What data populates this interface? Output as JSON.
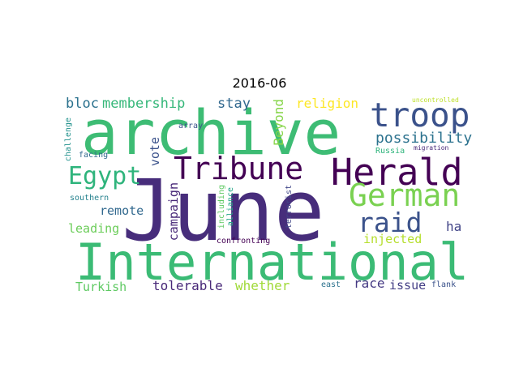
{
  "title": "2016-06",
  "cloud": {
    "june": {
      "text": "June",
      "color": "#472d7b"
    },
    "archive": {
      "text": "archive",
      "color": "#3dbc74"
    },
    "international": {
      "text": "International",
      "color": "#3bbb75"
    },
    "herald": {
      "text": "Herald",
      "color": "#440154"
    },
    "tribune": {
      "text": "Tribune",
      "color": "#440154"
    },
    "troop": {
      "text": "troop",
      "color": "#3b528b"
    },
    "german": {
      "text": "German",
      "color": "#7ad151"
    },
    "egypt": {
      "text": "Egypt",
      "color": "#2fb47c"
    },
    "raid": {
      "text": "raid",
      "color": "#3b528b"
    },
    "possibility": {
      "text": "possibility",
      "color": "#2c728e"
    },
    "membership": {
      "text": "membership",
      "color": "#35b779"
    },
    "bloc": {
      "text": "bloc",
      "color": "#2c728e"
    },
    "stay": {
      "text": "stay",
      "color": "#31688e"
    },
    "religion": {
      "text": "religion",
      "color": "#fde725"
    },
    "beyond": {
      "text": "Beyond",
      "color": "#86d549"
    },
    "vote": {
      "text": "vote",
      "color": "#3b528b"
    },
    "campaign": {
      "text": "campaign",
      "color": "#482878"
    },
    "remote": {
      "text": "remote",
      "color": "#31688e"
    },
    "leading": {
      "text": "leading",
      "color": "#6ccd5a"
    },
    "injected": {
      "text": "injected",
      "color": "#b5de2b"
    },
    "ha": {
      "text": "ha",
      "color": "#414487"
    },
    "tolerable": {
      "text": "tolerable",
      "color": "#482878"
    },
    "whether": {
      "text": "whether",
      "color": "#a0da39"
    },
    "race": {
      "text": "race",
      "color": "#443983"
    },
    "issue": {
      "text": "issue",
      "color": "#433e85"
    },
    "turkish": {
      "text": "Turkish",
      "color": "#5ec962"
    },
    "challenge": {
      "text": "challenge",
      "color": "#21918c"
    },
    "facing": {
      "text": "facing",
      "color": "#31688e"
    },
    "array": {
      "text": "array",
      "color": "#3b528b"
    },
    "southern": {
      "text": "southern",
      "color": "#26828e"
    },
    "including": {
      "text": "including",
      "color": "#5ec962"
    },
    "alliance": {
      "text": "alliance",
      "color": "#21a585"
    },
    "terrorist": {
      "text": "terrorist",
      "color": "#404688"
    },
    "confronting": {
      "text": "confronting",
      "color": "#440154"
    },
    "east": {
      "text": "east",
      "color": "#2c728e"
    },
    "flank": {
      "text": "flank",
      "color": "#3b528b"
    },
    "russia": {
      "text": "Russia",
      "color": "#2fb47c"
    },
    "migration": {
      "text": "migration",
      "color": "#482878"
    },
    "uncontrolled": {
      "text": "uncontrolled",
      "color": "#bddf26"
    }
  }
}
